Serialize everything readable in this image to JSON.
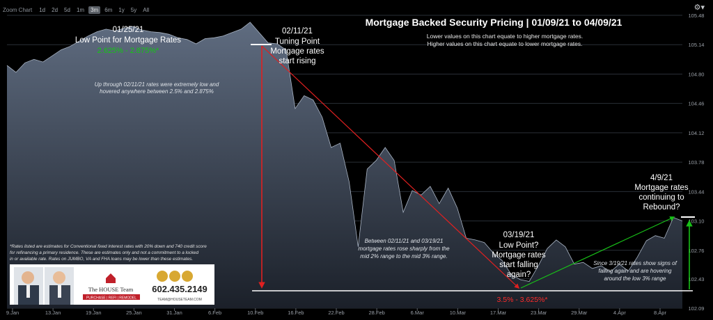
{
  "toolbar": {
    "zoom_label": "Zoom Chart",
    "buttons": [
      "1d",
      "2d",
      "5d",
      "1m",
      "3m",
      "6m",
      "1y",
      "5y",
      "All"
    ],
    "active": "3m",
    "settings_icon": "gear-icon"
  },
  "chart_data": {
    "type": "area",
    "title": "Mortgage Backed Security Pricing | 01/09/21 to 04/09/21",
    "subtitle_lines": [
      "Lower values on this chart equate to higher mortgage rates.",
      "Higher values on this chart equate to lower mortgage rates."
    ],
    "x_ticks": [
      "9.Jan",
      "13.Jan",
      "19.Jan",
      "25.Jan",
      "31.Jan",
      "6.Feb",
      "10.Feb",
      "16.Feb",
      "22.Feb",
      "28.Feb",
      "6.Mar",
      "10.Mar",
      "17.Mar",
      "23.Mar",
      "29.Mar",
      "4.Apr",
      "8.Apr"
    ],
    "y_ticks": [
      "105.48",
      "105.14",
      "104.80",
      "104.46",
      "104.12",
      "103.78",
      "103.44",
      "103.10",
      "102.76",
      "102.43",
      "102.09"
    ],
    "ylim": [
      102.09,
      105.48
    ],
    "grid": true,
    "series": [
      {
        "values": [
          104.9,
          104.82,
          104.93,
          104.97,
          104.94,
          105.01,
          105.08,
          105.12,
          105.18,
          105.24,
          105.29,
          105.32,
          105.3,
          105.33,
          105.35,
          105.31,
          105.29,
          105.28,
          105.26,
          105.22,
          105.2,
          105.15,
          105.21,
          105.22,
          105.24,
          105.28,
          105.32,
          105.4,
          105.28,
          105.16,
          105.15,
          105.08,
          104.4,
          104.55,
          104.5,
          104.3,
          103.95,
          104.0,
          103.55,
          102.8,
          103.7,
          103.8,
          103.95,
          103.8,
          103.2,
          103.45,
          103.4,
          103.5,
          103.3,
          103.48,
          103.25,
          102.9,
          102.88,
          102.85,
          102.73,
          102.64,
          102.48,
          102.42,
          102.4,
          102.58,
          102.78,
          102.88,
          102.8,
          102.6,
          102.62,
          102.55,
          102.58,
          102.51,
          102.6,
          102.52,
          102.68,
          102.87,
          102.93,
          102.9,
          103.14,
          103.1
        ]
      }
    ],
    "annotations": {
      "low_point_date": "01/25/21",
      "low_point_label": "Low Point for Mortgage Rates",
      "low_point_rates": "2.625% - 2.875%*",
      "turning_date": "02/11/21",
      "turning_lines": [
        "Tuning Point",
        "Mortgage rates",
        "start rising"
      ],
      "note_early": [
        "Up through 02/11/21 rates were extremely low and",
        "hovered anywhere between 2.5% and 2.875%"
      ],
      "note_mid": [
        "Between 02/11/21 and 03/19/21",
        "mortgage rates rose sharply from the",
        "mid 2% range to the mid 3% range."
      ],
      "mar19_date": "03/19/21",
      "mar19_lines": [
        "Low Point?",
        "Mortgage rates",
        "start falling",
        "again?"
      ],
      "mar19_rates": "3.5% - 3.625%*",
      "apr9_date": "4/9/21",
      "apr9_lines": [
        "Mortgage rates",
        "continuing to",
        "Rebound?"
      ],
      "note_late": [
        "Since 3/19/21 rates show signs of",
        "falling again and are hovering",
        "around the low 3% range"
      ],
      "disclaimer": [
        "*Rates listed are estimates for Conventional fixed interest rates with 20% down and 740 credit score",
        "for refinancing a primary residence.  These are estimates only and not a commitment to a locked",
        "in or available rate. Rates on JUMBO, VA and FHA loans may be lower than these estimates."
      ]
    }
  },
  "ad": {
    "brand": "The HOUSE Team",
    "tagline": "PURCHASE | REFI | REMODEL",
    "phone": "602.435.2149",
    "website": "TEAM@HOUSETEAM.COM"
  },
  "colors": {
    "area_top": "#5f6c80",
    "area_bottom": "#1b2029",
    "line": "#a9b4c4",
    "red": "#e02020",
    "green": "#18c018",
    "low_rate_text": "#12c812",
    "rate_red_text": "#ff2b2b"
  }
}
